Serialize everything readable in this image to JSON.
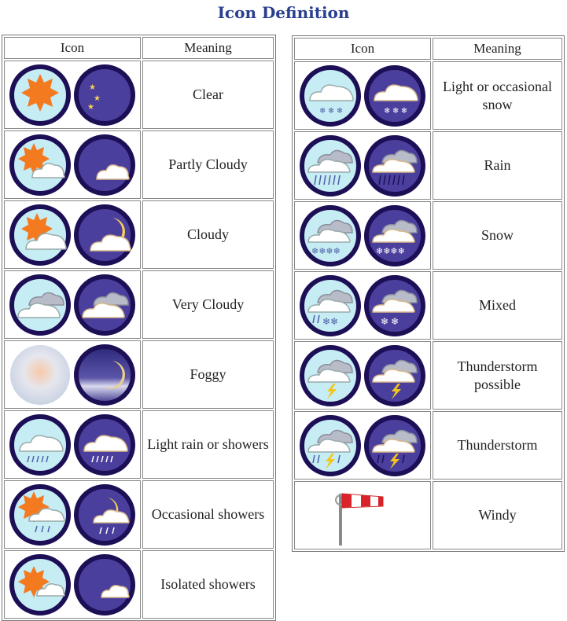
{
  "page": {
    "title": "Icon Definition"
  },
  "headers": {
    "icon": "Icon",
    "meaning": "Meaning"
  },
  "colors": {
    "day_bg": "#c6ecf4",
    "night_bg": "#4b3f9e",
    "ring": "#1d0f56",
    "sun": "#f47a1f",
    "moon": "#f5cf57",
    "cloud": "#ffffff",
    "rain": "#4b5fa8",
    "title": "#2a3f8f"
  },
  "left_rows": [
    {
      "meaning": "Clear",
      "day_icon": "sun-icon",
      "night_icon": "moon-stars-icon"
    },
    {
      "meaning": "Partly Cloudy",
      "day_icon": "sun-cloud-icon",
      "night_icon": "moon-cloud-icon"
    },
    {
      "meaning": "Cloudy",
      "day_icon": "sun-cloud-icon",
      "night_icon": "moon-cloud-icon"
    },
    {
      "meaning": "Very Cloudy",
      "day_icon": "clouds-icon",
      "night_icon": "clouds-icon"
    },
    {
      "meaning": "Foggy",
      "day_icon": "fog-icon",
      "night_icon": "fog-moon-icon"
    },
    {
      "meaning": "Light rain or showers",
      "day_icon": "rain-icon",
      "night_icon": "rain-icon"
    },
    {
      "meaning": "Occasional showers",
      "day_icon": "sun-rain-icon",
      "night_icon": "moon-rain-icon"
    },
    {
      "meaning": "Isolated showers",
      "day_icon": "sun-cloud-icon",
      "night_icon": "moon-cloud-icon"
    }
  ],
  "right_rows": [
    {
      "meaning": "Light or occasional snow",
      "day_icon": "snow-icon",
      "night_icon": "snow-icon"
    },
    {
      "meaning": "Rain",
      "day_icon": "rain-heavy-icon",
      "night_icon": "rain-heavy-icon"
    },
    {
      "meaning": "Snow",
      "day_icon": "snow-heavy-icon",
      "night_icon": "snow-heavy-icon"
    },
    {
      "meaning": "Mixed",
      "day_icon": "mixed-icon",
      "night_icon": "mixed-icon"
    },
    {
      "meaning": "Thunderstorm possible",
      "day_icon": "thunder-icon",
      "night_icon": "thunder-icon"
    },
    {
      "meaning": "Thunderstorm",
      "day_icon": "thunder-rain-icon",
      "night_icon": "thunder-rain-icon"
    },
    {
      "meaning": "Windy",
      "day_icon": "windsock-icon",
      "night_icon": ""
    }
  ]
}
